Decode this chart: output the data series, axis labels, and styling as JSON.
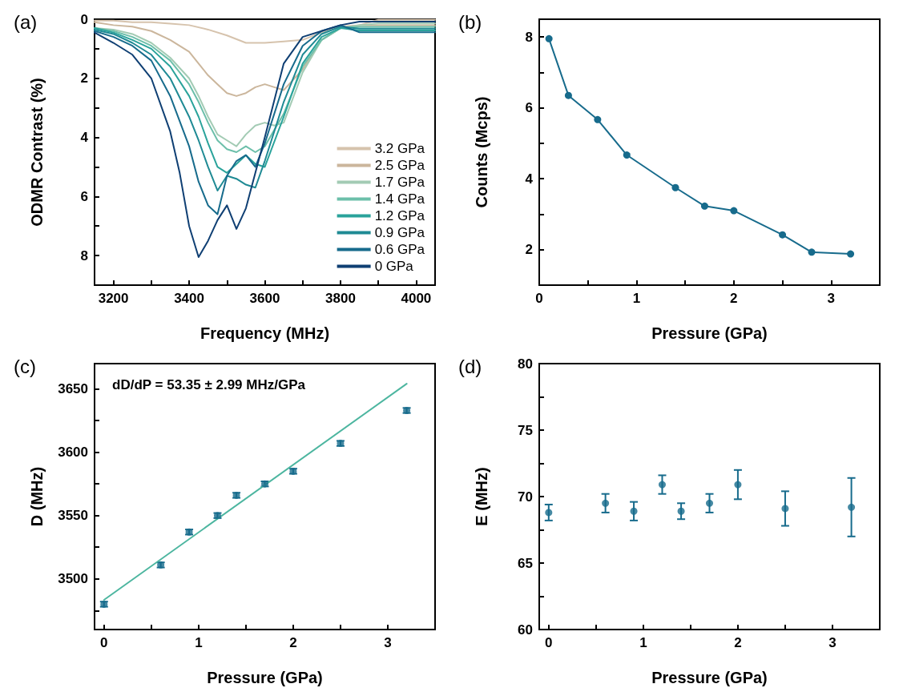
{
  "chart_data": [
    {
      "type": "line",
      "title": "(a)",
      "xlabel": "Frequency (MHz)",
      "ylabel": "ODMR Contrast (%)",
      "xlim": [
        3150,
        4050
      ],
      "ylim": [
        9,
        0
      ],
      "xticks": [
        3200,
        {
          "value": 3300,
          "label": null
        },
        3400,
        {
          "value": 3500,
          "label": null
        },
        3600,
        {
          "value": 3700,
          "label": null
        },
        3800,
        {
          "value": 3900,
          "label": null
        },
        4000
      ],
      "yticks": [
        0,
        {
          "value": 1,
          "label": null
        },
        2,
        {
          "value": 3,
          "label": null
        },
        4,
        {
          "value": 5,
          "label": null
        },
        6,
        {
          "value": 7,
          "label": null
        },
        8
      ],
      "grid": false,
      "legend": "bottom right",
      "marker": "none",
      "line_style": "solid",
      "series": [
        {
          "name": "3.2 GPa",
          "color": "#d6c3ad",
          "x": [
            3150,
            3200,
            3250,
            3300,
            3350,
            3400,
            3450,
            3500,
            3550,
            3600,
            3650,
            3700,
            3750,
            3800,
            3850,
            3900,
            3950,
            4000,
            4050
          ],
          "values": [
            0.05,
            0.05,
            0.1,
            0.1,
            0.15,
            0.2,
            0.35,
            0.55,
            0.8,
            0.8,
            0.75,
            0.7,
            0.45,
            0.25,
            0.2,
            0.02,
            0.02,
            0.02,
            0.02
          ]
        },
        {
          "name": "2.5 GPa",
          "color": "#cbb69c",
          "x": [
            3150,
            3200,
            3250,
            3300,
            3350,
            3400,
            3425,
            3450,
            3475,
            3500,
            3525,
            3550,
            3575,
            3600,
            3625,
            3650,
            3700,
            3750,
            3800,
            3850,
            3900,
            3950,
            4000,
            4050
          ],
          "values": [
            0.1,
            0.2,
            0.25,
            0.4,
            0.7,
            1.1,
            1.5,
            1.9,
            2.2,
            2.5,
            2.6,
            2.5,
            2.3,
            2.2,
            2.3,
            2.4,
            1.7,
            0.7,
            0.3,
            0.2,
            0.2,
            0.2,
            0.2,
            0.2
          ]
        },
        {
          "name": "1.7 GPa",
          "color": "#a3cbb4",
          "x": [
            3150,
            3200,
            3250,
            3300,
            3350,
            3400,
            3425,
            3450,
            3475,
            3500,
            3525,
            3550,
            3575,
            3600,
            3625,
            3650,
            3700,
            3750,
            3800,
            3850,
            3900,
            3950,
            4000,
            4050
          ],
          "values": [
            0.3,
            0.35,
            0.5,
            0.8,
            1.3,
            2.0,
            2.6,
            3.3,
            3.9,
            4.1,
            4.3,
            3.9,
            3.6,
            3.5,
            3.6,
            3.5,
            1.8,
            0.7,
            0.3,
            0.2,
            0.14,
            0.14,
            0.14,
            0.14
          ]
        },
        {
          "name": "1.4 GPa",
          "color": "#6cbfaa",
          "x": [
            3150,
            3200,
            3250,
            3300,
            3350,
            3400,
            3425,
            3450,
            3475,
            3500,
            3525,
            3550,
            3575,
            3600,
            3650,
            3700,
            3750,
            3800,
            3850,
            3900,
            3950,
            4000,
            4050
          ],
          "values": [
            0.3,
            0.4,
            0.6,
            0.9,
            1.4,
            2.2,
            2.8,
            3.5,
            4.1,
            4.4,
            4.5,
            4.3,
            4.5,
            4.3,
            3.2,
            1.6,
            0.7,
            0.3,
            0.26,
            0.26,
            0.26,
            0.26,
            0.26
          ]
        },
        {
          "name": "1.2 GPa",
          "color": "#2aa39b",
          "x": [
            3150,
            3200,
            3250,
            3300,
            3350,
            3400,
            3425,
            3450,
            3475,
            3500,
            3525,
            3550,
            3575,
            3600,
            3650,
            3700,
            3750,
            3800,
            3850,
            3900,
            3950,
            4000,
            4050
          ],
          "values": [
            0.3,
            0.45,
            0.7,
            1.0,
            1.6,
            2.6,
            3.3,
            4.2,
            5.0,
            5.2,
            4.9,
            4.6,
            4.9,
            5.0,
            3.3,
            1.5,
            0.6,
            0.3,
            0.38,
            0.38,
            0.38,
            0.38,
            0.38
          ]
        },
        {
          "name": "0.9 GPa",
          "color": "#1f8a94",
          "x": [
            3150,
            3200,
            3250,
            3300,
            3350,
            3400,
            3425,
            3450,
            3475,
            3500,
            3525,
            3550,
            3575,
            3600,
            3650,
            3700,
            3750,
            3800,
            3850,
            3900,
            3950,
            4000,
            4050
          ],
          "values": [
            0.35,
            0.5,
            0.8,
            1.2,
            2.0,
            3.3,
            4.1,
            5.0,
            5.8,
            5.3,
            5.4,
            5.6,
            5.7,
            4.8,
            2.8,
            1.2,
            0.5,
            0.25,
            0.32,
            0.32,
            0.32,
            0.32,
            0.32
          ]
        },
        {
          "name": "0.6 GPa",
          "color": "#176b8c",
          "x": [
            3150,
            3200,
            3250,
            3300,
            3350,
            3400,
            3425,
            3450,
            3475,
            3500,
            3525,
            3550,
            3575,
            3600,
            3650,
            3700,
            3750,
            3800,
            3850,
            3900,
            3950,
            4000,
            4050
          ],
          "values": [
            0.4,
            0.6,
            0.9,
            1.4,
            2.6,
            4.3,
            5.5,
            6.3,
            6.6,
            5.3,
            4.8,
            4.6,
            5.0,
            4.2,
            2.2,
            0.9,
            0.4,
            0.2,
            0.44,
            0.44,
            0.44,
            0.44,
            0.44
          ]
        },
        {
          "name": "0 GPa",
          "color": "#0f3f73",
          "x": [
            3150,
            3200,
            3250,
            3300,
            3350,
            3375,
            3400,
            3425,
            3450,
            3475,
            3500,
            3525,
            3550,
            3575,
            3600,
            3650,
            3700,
            3750,
            3800,
            3850,
            3900,
            3950,
            4000,
            4050
          ],
          "values": [
            0.45,
            0.8,
            1.2,
            2.0,
            3.8,
            5.2,
            7.0,
            8.05,
            7.5,
            6.8,
            6.3,
            7.1,
            6.4,
            5.2,
            4.0,
            1.5,
            0.6,
            0.4,
            0.2,
            0.08,
            0.08,
            0.08,
            0.08,
            0.08
          ]
        }
      ]
    },
    {
      "type": "line",
      "title": "(b)",
      "xlabel": "Pressure (GPa)",
      "ylabel": "Counts (Mcps)",
      "xlim": [
        0,
        3.5
      ],
      "ylim": [
        1,
        8.5
      ],
      "xticks": [
        0,
        {
          "value": 0.5,
          "label": null
        },
        1,
        {
          "value": 1.5,
          "label": null
        },
        2,
        {
          "value": 2.5,
          "label": null
        },
        3
      ],
      "yticks": [
        2,
        {
          "value": 3,
          "label": null
        },
        4,
        {
          "value": 5,
          "label": null
        },
        6,
        {
          "value": 7,
          "label": null
        },
        8
      ],
      "grid": false,
      "marker": "circle",
      "line_style": "solid",
      "series": [
        {
          "color": "#176b8c",
          "x": [
            0.1,
            0.3,
            0.6,
            0.9,
            1.4,
            1.7,
            2.0,
            2.5,
            2.8,
            3.2
          ],
          "values": [
            7.95,
            6.35,
            5.67,
            4.67,
            3.75,
            3.23,
            3.1,
            2.42,
            1.93,
            1.88
          ]
        }
      ]
    },
    {
      "type": "scatter",
      "title": "(c)",
      "xlabel": "Pressure (GPa)",
      "ylabel": "D (MHz)",
      "xlim": [
        -0.1,
        3.5
      ],
      "ylim": [
        3460,
        3670
      ],
      "xticks": [
        0,
        {
          "value": 0.5,
          "label": null
        },
        1,
        {
          "value": 1.5,
          "label": null
        },
        2,
        {
          "value": 2.5,
          "label": null
        },
        3
      ],
      "yticks": [
        {
          "value": 3475,
          "label": null
        },
        3500,
        {
          "value": 3525,
          "label": null
        },
        3550,
        {
          "value": 3575,
          "label": null
        },
        3600,
        {
          "value": 3625,
          "label": null
        },
        3650
      ],
      "grid": false,
      "marker": "circle",
      "annotations": [
        "dD/dP = 53.35 ± 2.99 MHz/GPa"
      ],
      "series": [
        {
          "color": "#176b8c",
          "x": [
            0,
            0.6,
            0.9,
            1.2,
            1.4,
            1.7,
            2.0,
            2.5,
            3.2
          ],
          "values": [
            3480,
            3511,
            3537,
            3550,
            3566,
            3575,
            3585,
            3607,
            3633
          ],
          "errors": [
            2,
            2,
            2,
            2,
            2,
            2,
            2,
            2,
            2
          ]
        },
        {
          "type": "line",
          "marker": "none",
          "color": "#4db6a0",
          "x": [
            0,
            3.2
          ],
          "values": [
            3483.4,
            3654.1
          ]
        }
      ]
    },
    {
      "type": "scatter",
      "title": "(d)",
      "xlabel": "Pressure (GPa)",
      "ylabel": "E (MHz)",
      "xlim": [
        -0.1,
        3.5
      ],
      "ylim": [
        60,
        80
      ],
      "xticks": [
        0,
        {
          "value": 0.5,
          "label": null
        },
        1,
        {
          "value": 1.5,
          "label": null
        },
        2,
        {
          "value": 2.5,
          "label": null
        },
        3
      ],
      "yticks": [
        60,
        {
          "value": 62.5,
          "label": null
        },
        65,
        {
          "value": 67.5,
          "label": null
        },
        70,
        {
          "value": 72.5,
          "label": null
        },
        75,
        {
          "value": 77.5,
          "label": null
        },
        80
      ],
      "grid": false,
      "marker": "circle",
      "series": [
        {
          "color": "#176b8c",
          "x": [
            0,
            0.6,
            0.9,
            1.2,
            1.4,
            1.7,
            2.0,
            2.5,
            3.2
          ],
          "values": [
            68.8,
            69.5,
            68.9,
            70.9,
            68.9,
            69.5,
            70.9,
            69.1,
            69.2
          ],
          "errors": [
            [
              68.2,
              69.4
            ],
            [
              68.8,
              70.2
            ],
            [
              68.2,
              69.6
            ],
            [
              70.2,
              71.6
            ],
            [
              68.3,
              69.5
            ],
            [
              68.8,
              70.2
            ],
            [
              69.8,
              72.0
            ],
            [
              67.8,
              70.4
            ],
            [
              67.0,
              71.4
            ]
          ]
        }
      ]
    }
  ]
}
